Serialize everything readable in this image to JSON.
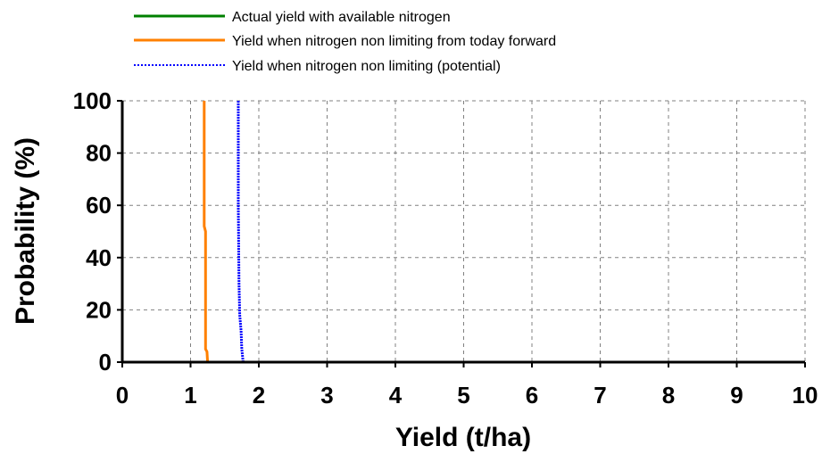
{
  "chart_data": {
    "type": "line",
    "xlabel": "Yield (t/ha)",
    "ylabel": "Probability (%)",
    "xlim": [
      0,
      10
    ],
    "ylim": [
      0,
      100
    ],
    "x_ticks": [
      "0",
      "1",
      "2",
      "3",
      "4",
      "5",
      "6",
      "7",
      "8",
      "9",
      "10"
    ],
    "y_ticks": [
      "0",
      "20",
      "40",
      "60",
      "80",
      "100"
    ],
    "grid": true,
    "legend_position": "top",
    "series": [
      {
        "name": "Actual yield with available nitrogen",
        "color": "#008000",
        "style": "solid",
        "points": []
      },
      {
        "name": "Yield when nitrogen non limiting from today forward",
        "color": "#ff8000",
        "style": "solid",
        "points": [
          {
            "x": 1.25,
            "y": 0
          },
          {
            "x": 1.24,
            "y": 4
          },
          {
            "x": 1.22,
            "y": 5
          },
          {
            "x": 1.22,
            "y": 50
          },
          {
            "x": 1.2,
            "y": 52
          },
          {
            "x": 1.2,
            "y": 100
          }
        ]
      },
      {
        "name": "Yield when nitrogen non limiting (potential)",
        "color": "#0000ff",
        "style": "dotted",
        "points": [
          {
            "x": 1.77,
            "y": 0
          },
          {
            "x": 1.75,
            "y": 5
          },
          {
            "x": 1.74,
            "y": 12
          },
          {
            "x": 1.72,
            "y": 18
          },
          {
            "x": 1.71,
            "y": 30
          },
          {
            "x": 1.7,
            "y": 60
          },
          {
            "x": 1.7,
            "y": 100
          }
        ]
      }
    ]
  }
}
